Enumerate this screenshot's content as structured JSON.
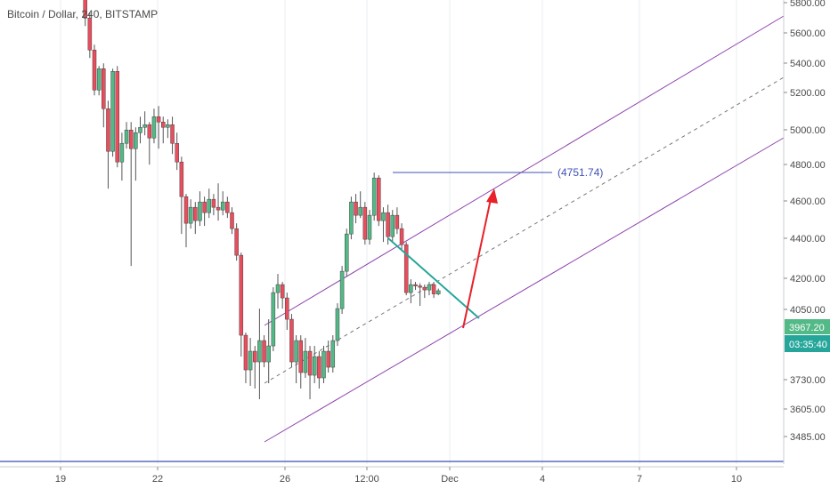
{
  "chart_data": {
    "type": "candlestick",
    "title": "Bitcoin / Dollar, 240, BITSTAMP",
    "y_ticks": [
      "5800.00",
      "5600.00",
      "5400.00",
      "5200.00",
      "5000.00",
      "4800.00",
      "4600.00",
      "4400.00",
      "4200.00",
      "4050.00",
      "3730.00",
      "3605.00",
      "3485.00"
    ],
    "x_ticks": [
      "19",
      "22",
      "26",
      "12:00",
      "Dec",
      "4",
      "7",
      "10"
    ],
    "last_price": "3967.20",
    "countdown": "03:35:40",
    "target_label": "(4751.74)",
    "colors": {
      "up": "#53b987",
      "down": "#eb4d5c",
      "channel": "#8e44ad",
      "trend": "#26a69a",
      "arrow": "#e8212a",
      "target": "#3f51b5",
      "price_label": "#53b987",
      "countdown_label": "#26a69a"
    },
    "candles": [
      [
        5500,
        5510,
        5480,
        5520
      ],
      [
        5505,
        5495,
        5480,
        5515
      ],
      [
        5495,
        5500,
        5485,
        5510
      ],
      [
        5500,
        5510,
        5490,
        5520
      ],
      [
        5505,
        5495,
        5485,
        5515
      ],
      [
        5495,
        5505,
        5485,
        5515
      ],
      [
        5505,
        5510,
        5495,
        5520
      ],
      [
        5510,
        5540,
        5500,
        5550
      ],
      [
        5540,
        5530,
        5515,
        5550
      ],
      [
        5530,
        5535,
        5520,
        5545
      ],
      [
        5535,
        5530,
        5520,
        5545
      ],
      [
        5530,
        5555,
        5520,
        5570
      ],
      [
        5555,
        5545,
        5530,
        5580
      ],
      [
        5545,
        5560,
        5535,
        5620
      ],
      [
        5560,
        5460,
        5450,
        5570
      ],
      [
        5460,
        5380,
        5360,
        5470
      ],
      [
        5380,
        5290,
        5260,
        5390
      ],
      [
        5290,
        5160,
        5120,
        5300
      ],
      [
        5160,
        4990,
        4960,
        5180
      ],
      [
        4990,
        4870,
        4840,
        5010
      ],
      [
        4870,
        4720,
        4700,
        4890
      ],
      [
        4720,
        4800,
        4700,
        4810
      ],
      [
        4800,
        4650,
        4580,
        4820
      ],
      [
        4650,
        4490,
        4350,
        4680
      ],
      [
        4490,
        4790,
        4470,
        4800
      ],
      [
        4790,
        4450,
        4430,
        4810
      ],
      [
        4450,
        4520,
        4380,
        4560
      ],
      [
        4520,
        4570,
        4500,
        4600
      ],
      [
        4570,
        4500,
        4060,
        4600
      ],
      [
        4500,
        4560,
        4380,
        4580
      ],
      [
        4560,
        4580,
        4520,
        4620
      ],
      [
        4580,
        4590,
        4550,
        4640
      ],
      [
        4590,
        4540,
        4440,
        4600
      ],
      [
        4540,
        4620,
        4520,
        4650
      ],
      [
        4620,
        4600,
        4500,
        4660
      ],
      [
        4600,
        4580,
        4520,
        4620
      ],
      [
        4580,
        4590,
        4540,
        4610
      ],
      [
        4590,
        4520,
        4480,
        4620
      ],
      [
        4520,
        4450,
        4420,
        4560
      ],
      [
        4450,
        4320,
        4180,
        4470
      ],
      [
        4320,
        4220,
        4130,
        4330
      ],
      [
        4220,
        4280,
        4200,
        4310
      ],
      [
        4280,
        4230,
        4180,
        4300
      ],
      [
        4230,
        4300,
        4210,
        4340
      ],
      [
        4300,
        4260,
        4210,
        4320
      ],
      [
        4260,
        4310,
        4240,
        4350
      ],
      [
        4310,
        4280,
        4250,
        4330
      ],
      [
        4280,
        4270,
        4230,
        4370
      ],
      [
        4270,
        4300,
        4250,
        4340
      ],
      [
        4300,
        4260,
        4240,
        4320
      ],
      [
        4260,
        4200,
        4180,
        4280
      ],
      [
        4200,
        4100,
        4080,
        4220
      ],
      [
        4100,
        3800,
        3720,
        4110
      ],
      [
        3800,
        3670,
        3620,
        3810
      ],
      [
        3670,
        3740,
        3610,
        3790
      ],
      [
        3740,
        3700,
        3600,
        3760
      ],
      [
        3700,
        3780,
        3560,
        3900
      ],
      [
        3780,
        3700,
        3680,
        3800
      ],
      [
        3700,
        3760,
        3620,
        3860
      ],
      [
        3760,
        3960,
        3740,
        3980
      ],
      [
        3960,
        3990,
        3900,
        4030
      ],
      [
        3990,
        3940,
        3900,
        4000
      ],
      [
        3940,
        3860,
        3820,
        3960
      ],
      [
        3860,
        3700,
        3680,
        3880
      ],
      [
        3700,
        3780,
        3620,
        3800
      ],
      [
        3780,
        3660,
        3600,
        3800
      ],
      [
        3660,
        3740,
        3640,
        3790
      ],
      [
        3740,
        3650,
        3560,
        3760
      ],
      [
        3650,
        3720,
        3620,
        3760
      ],
      [
        3720,
        3640,
        3600,
        3740
      ],
      [
        3640,
        3740,
        3620,
        3760
      ],
      [
        3740,
        3680,
        3660,
        3780
      ],
      [
        3680,
        3780,
        3660,
        3800
      ],
      [
        3780,
        3900,
        3760,
        3920
      ],
      [
        3900,
        4040,
        3880,
        4060
      ],
      [
        4040,
        4180,
        4020,
        4200
      ],
      [
        4180,
        4300,
        4160,
        4320
      ],
      [
        4300,
        4250,
        4220,
        4330
      ],
      [
        4250,
        4280,
        4240,
        4340
      ],
      [
        4280,
        4160,
        4140,
        4300
      ],
      [
        4160,
        4250,
        4140,
        4270
      ],
      [
        4250,
        4390,
        4230,
        4410
      ],
      [
        4390,
        4230,
        4210,
        4400
      ],
      [
        4230,
        4260,
        4150,
        4280
      ],
      [
        4260,
        4170,
        4140,
        4290
      ],
      [
        4170,
        4250,
        4150,
        4270
      ],
      [
        4250,
        4200,
        4180,
        4280
      ],
      [
        4200,
        4140,
        4120,
        4220
      ],
      [
        4140,
        3960,
        3950,
        4150
      ],
      [
        3960,
        3990,
        3920,
        4010
      ],
      [
        3990,
        3985,
        3970,
        4000
      ],
      [
        3985,
        3980,
        3910,
        3995
      ],
      [
        3980,
        3970,
        3940,
        3990
      ],
      [
        3970,
        3990,
        3950,
        4000
      ],
      [
        3990,
        3955,
        3940,
        4000
      ],
      [
        3955,
        3967,
        3950,
        3975
      ]
    ]
  }
}
